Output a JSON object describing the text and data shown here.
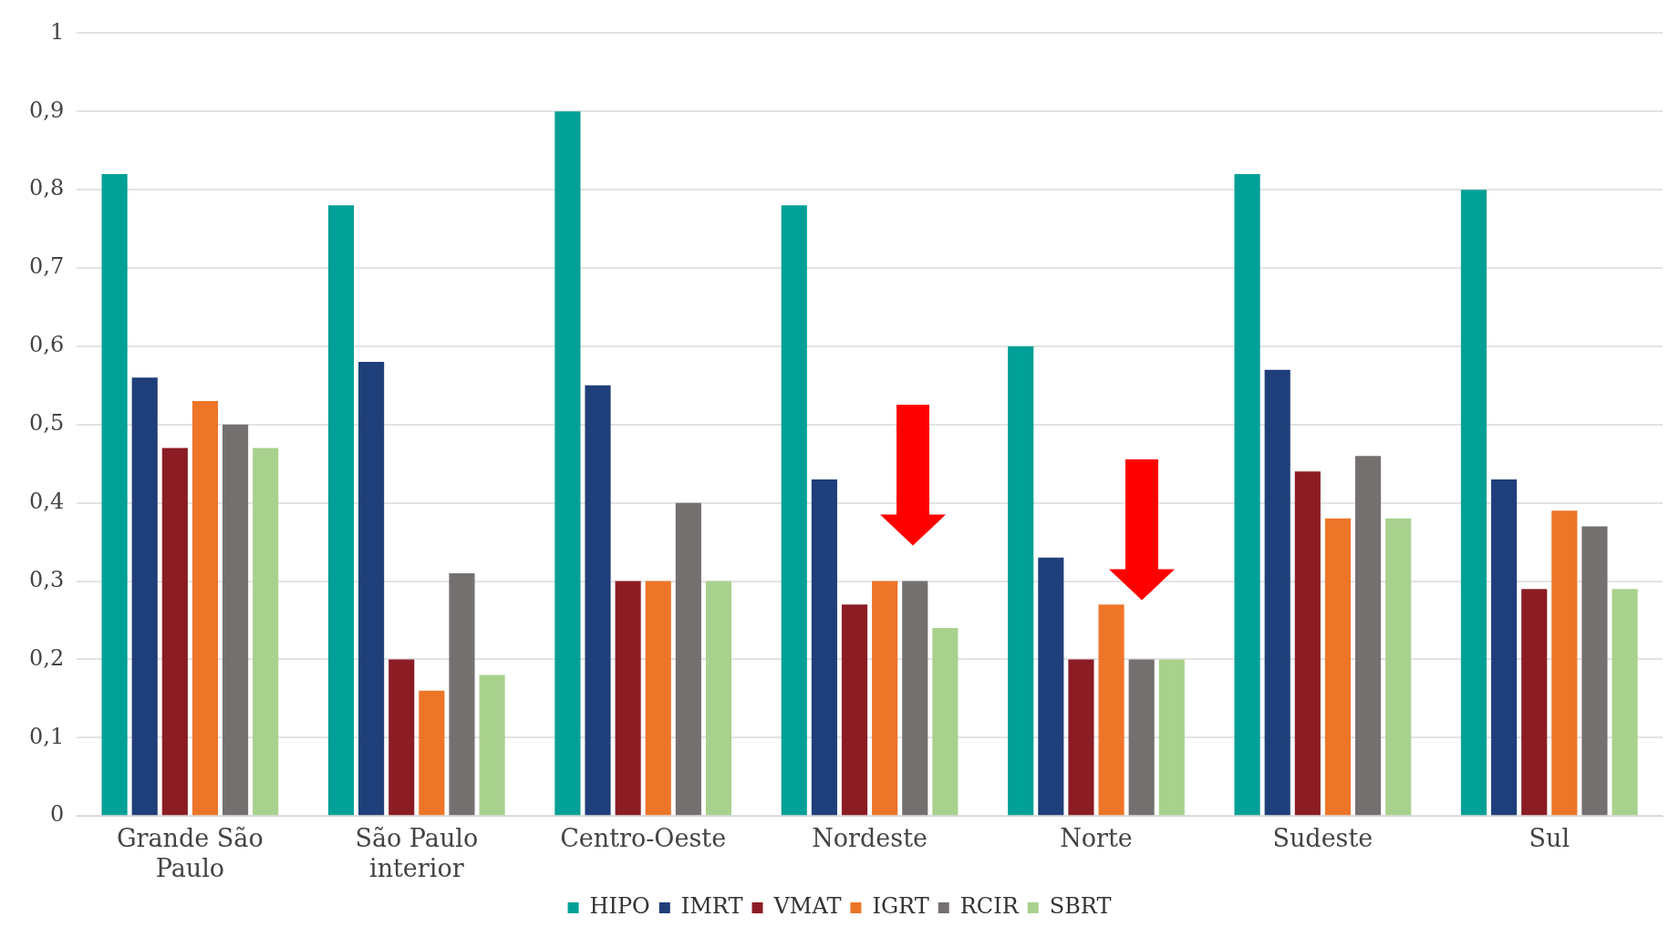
{
  "chart_data": {
    "type": "bar",
    "categories": [
      "Grande São Paulo",
      "São Paulo interior",
      "Centro-Oeste",
      "Nordeste",
      "Norte",
      "Sudeste",
      "Sul"
    ],
    "series": [
      {
        "name": "HIPO",
        "color": "#00a096",
        "values": [
          0.82,
          0.78,
          0.9,
          0.78,
          0.6,
          0.82,
          0.8
        ]
      },
      {
        "name": "IMRT",
        "color": "#1f3f7a",
        "values": [
          0.56,
          0.58,
          0.55,
          0.43,
          0.33,
          0.57,
          0.43
        ]
      },
      {
        "name": "VMAT",
        "color": "#8b1c24",
        "values": [
          0.47,
          0.2,
          0.3,
          0.27,
          0.2,
          0.44,
          0.29
        ]
      },
      {
        "name": "IGRT",
        "color": "#ed7528",
        "values": [
          0.53,
          0.16,
          0.3,
          0.3,
          0.27,
          0.38,
          0.39
        ]
      },
      {
        "name": "RCIR",
        "color": "#757070",
        "values": [
          0.5,
          0.31,
          0.4,
          0.3,
          0.2,
          0.46,
          0.37
        ]
      },
      {
        "name": "SBRT",
        "color": "#a9d18e",
        "values": [
          0.47,
          0.18,
          0.3,
          0.24,
          0.2,
          0.38,
          0.29
        ]
      }
    ],
    "ylim": [
      0,
      1
    ],
    "yticks": [
      {
        "value": 0,
        "label": "0"
      },
      {
        "value": 0.1,
        "label": "0,1"
      },
      {
        "value": 0.2,
        "label": "0,2"
      },
      {
        "value": 0.3,
        "label": "0,3"
      },
      {
        "value": 0.4,
        "label": "0,4"
      },
      {
        "value": 0.5,
        "label": "0,5"
      },
      {
        "value": 0.6,
        "label": "0,6"
      },
      {
        "value": 0.7,
        "label": "0,7"
      },
      {
        "value": 0.8,
        "label": "0,8"
      },
      {
        "value": 0.9,
        "label": "0,9"
      },
      {
        "value": 1,
        "label": "1"
      }
    ],
    "grid": "y",
    "legend": "bottom"
  }
}
